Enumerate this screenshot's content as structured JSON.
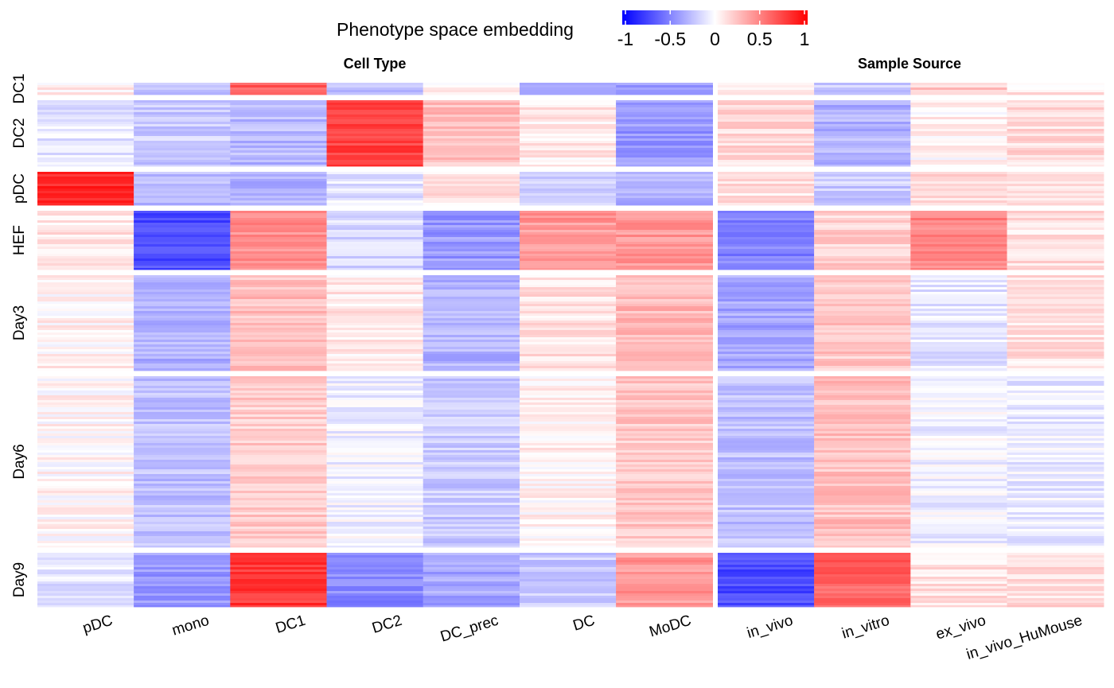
{
  "chart_data": {
    "type": "heatmap",
    "legend": {
      "title": "Phenotype space embedding",
      "placement": "top-center",
      "scale": [
        {
          "value": -1,
          "color": "#0000ff"
        },
        {
          "value": 0,
          "color": "#ffffff"
        },
        {
          "value": 1,
          "color": "#ff0000"
        }
      ],
      "ticks": [
        "-1",
        "-0.5",
        "0",
        "0.5",
        "1"
      ]
    },
    "column_groups": [
      {
        "title": "Cell Type",
        "columns": [
          "pDC",
          "mono",
          "DC1",
          "DC2",
          "DC_prec",
          "DC",
          "MoDC"
        ]
      },
      {
        "title": "Sample Source",
        "columns": [
          "in_vivo",
          "in_vitro",
          "ex_vivo",
          "in_vivo_HuMouse"
        ]
      }
    ],
    "row_groups": [
      {
        "label": "DC1",
        "values": [
          0.08,
          -0.25,
          0.65,
          -0.22,
          0.05,
          -0.38,
          -0.4,
          0.1,
          -0.2,
          0.2,
          0.1
        ]
      },
      {
        "label": "DC2",
        "values": [
          -0.1,
          -0.2,
          -0.28,
          0.75,
          0.25,
          0.08,
          -0.4,
          0.15,
          -0.3,
          0.05,
          0.15
        ]
      },
      {
        "label": "pDC",
        "values": [
          0.85,
          -0.25,
          -0.32,
          -0.1,
          0.1,
          -0.2,
          -0.3,
          0.12,
          -0.2,
          0.15,
          0.08
        ]
      },
      {
        "label": "HEF",
        "values": [
          0.1,
          -0.7,
          0.45,
          -0.15,
          -0.4,
          0.4,
          0.4,
          -0.5,
          0.18,
          0.48,
          0.12
        ]
      },
      {
        "label": "Day3",
        "values": [
          0.05,
          -0.3,
          0.25,
          0.08,
          -0.3,
          0.12,
          0.28,
          -0.35,
          0.22,
          -0.1,
          0.12
        ]
      },
      {
        "label": "Day6",
        "values": [
          0.03,
          -0.25,
          0.2,
          -0.05,
          -0.2,
          0.05,
          0.22,
          -0.25,
          0.25,
          -0.05,
          -0.08
        ]
      },
      {
        "label": "Day9",
        "values": [
          -0.1,
          -0.4,
          0.78,
          -0.45,
          -0.35,
          -0.2,
          0.4,
          -0.7,
          0.62,
          0.12,
          0.15
        ]
      }
    ]
  }
}
